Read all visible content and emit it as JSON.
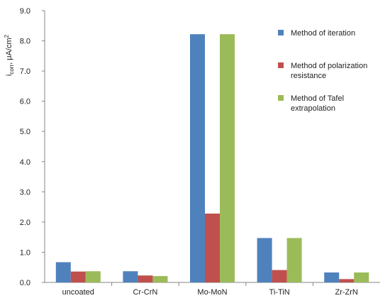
{
  "chart_data": {
    "type": "bar",
    "title": "",
    "xlabel": "",
    "ylabel": {
      "main": "i",
      "subscript": "corr",
      "unit": ", μA/cm",
      "superscript": "2"
    },
    "ylim": [
      0,
      9
    ],
    "yticks": [
      "0.0",
      "1.0",
      "2.0",
      "3.0",
      "4.0",
      "5.0",
      "6.0",
      "7.0",
      "8.0",
      "9.0"
    ],
    "grid": false,
    "legend_position": "right",
    "categories": [
      "uncoated",
      "Cr-CrN",
      "Mo-MoN",
      "Ti-TiN",
      "Zr-ZrN"
    ],
    "series": [
      {
        "name": [
          "Method of iteration"
        ],
        "color": "#4F81BD",
        "values": [
          0.67,
          0.37,
          8.22,
          1.47,
          0.33
        ]
      },
      {
        "name": [
          "Method of polarization",
          "resistance"
        ],
        "color": "#C0504D",
        "values": [
          0.36,
          0.23,
          2.28,
          0.41,
          0.11
        ]
      },
      {
        "name": [
          "Method of Tafel",
          "extrapolation"
        ],
        "color": "#9BBB59",
        "values": [
          0.37,
          0.21,
          8.22,
          1.47,
          0.33
        ]
      }
    ]
  }
}
